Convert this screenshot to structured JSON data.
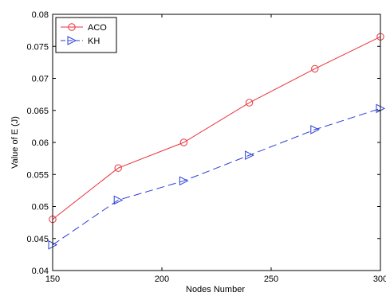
{
  "chart_data": {
    "type": "line",
    "title": "",
    "xlabel": "Nodes Number",
    "ylabel": "Value of E (J)",
    "x": [
      150,
      180,
      210,
      240,
      270,
      300
    ],
    "xlim": [
      150,
      300
    ],
    "ylim": [
      0.04,
      0.08
    ],
    "xticks": [
      150,
      200,
      250,
      300
    ],
    "yticks": [
      0.04,
      0.045,
      0.05,
      0.055,
      0.06,
      0.065,
      0.07,
      0.075,
      0.08
    ],
    "grid": false,
    "legend_position": "top-left",
    "series": [
      {
        "name": "ACO",
        "values": [
          0.048,
          0.056,
          0.06,
          0.0662,
          0.0715,
          0.0765
        ],
        "color": "#e8323c",
        "line_style": "solid",
        "marker": "circle"
      },
      {
        "name": "KH",
        "values": [
          0.044,
          0.051,
          0.054,
          0.058,
          0.062,
          0.0653
        ],
        "color": "#2a3fd6",
        "line_style": "dashed",
        "marker": "triangle-right"
      }
    ]
  }
}
